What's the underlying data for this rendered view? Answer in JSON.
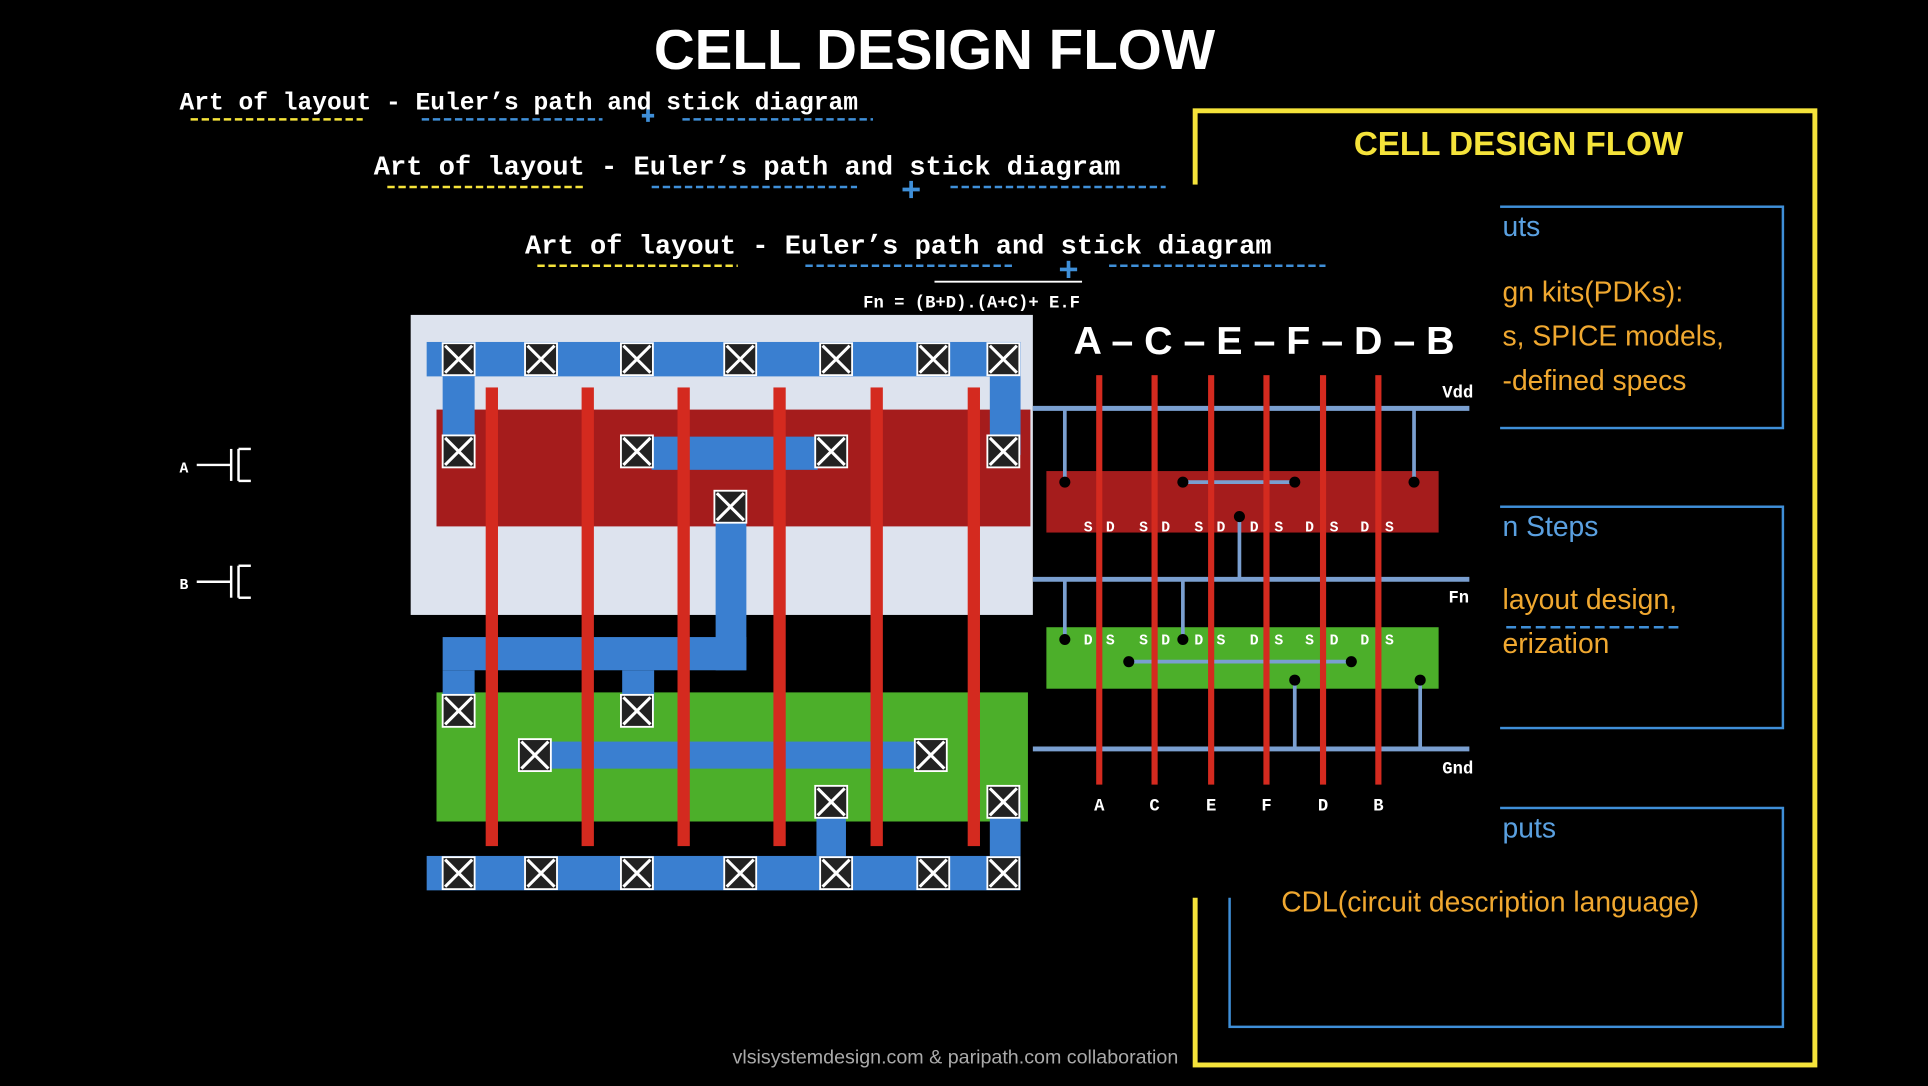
{
  "title": "CELL DESIGN FLOW",
  "headings": [
    "Art of layout - Euler’s path and stick diagram",
    "Art of layout - Euler’s path and stick diagram",
    "Art of layout - Euler’s path and stick diagram"
  ],
  "equation": "Fn = (B+D).(A+C)+ E.F",
  "euler_path": "A – C – E – F – D – B",
  "rails": {
    "vdd": "Vdd",
    "fn": "Fn",
    "gnd": "Gnd"
  },
  "gate_inputs": [
    "A",
    "C",
    "E",
    "F",
    "D",
    "B"
  ],
  "pmos_terminals": [
    "S",
    "D",
    "S",
    "D",
    "S",
    "D",
    "D",
    "S",
    "D",
    "S",
    "D",
    "S"
  ],
  "nmos_terminals": [
    "D",
    "S",
    "S",
    "D",
    "D",
    "S",
    "D",
    "S",
    "S",
    "D",
    "D",
    "S"
  ],
  "schematic_inputs": [
    "A",
    "B"
  ],
  "panel": {
    "title": "CELL DESIGN FLOW",
    "lines": [
      "uts",
      "gn kits(PDKs):",
      "s, SPICE models,",
      "-defined specs",
      "n Steps",
      "layout design,",
      "erization",
      "puts",
      "CDL(circuit description language)"
    ]
  },
  "footer": "vlsisystemdesign.com & paripath.com collaboration"
}
